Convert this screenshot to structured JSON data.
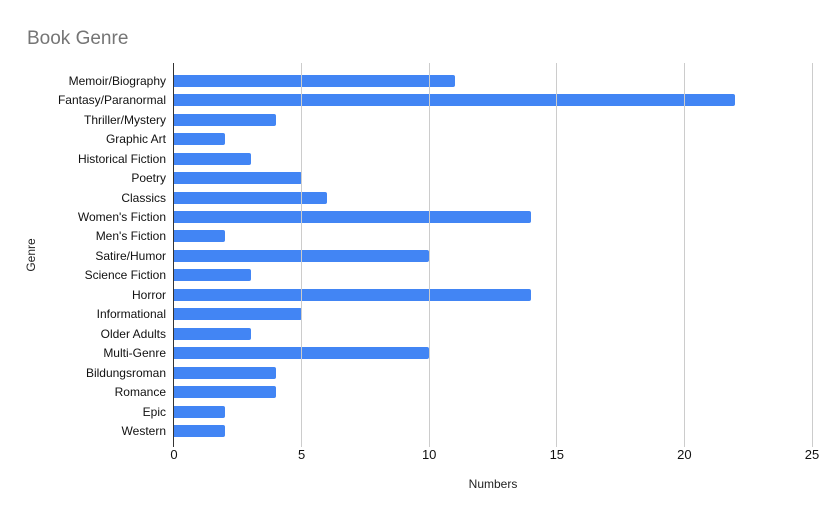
{
  "title": "Book Genre",
  "chart_data": {
    "type": "bar",
    "orientation": "horizontal",
    "title": "Book Genre",
    "categories": [
      "Memoir/Biography",
      "Fantasy/Paranormal",
      "Thriller/Mystery",
      "Graphic Art",
      "Historical Fiction",
      "Poetry",
      "Classics",
      "Women's Fiction",
      "Men's Fiction",
      "Satire/Humor",
      "Science Fiction",
      "Horror",
      "Informational",
      "Older Adults",
      "Multi-Genre",
      "Bildungsroman",
      "Romance",
      "Epic",
      "Western"
    ],
    "values": [
      11,
      22,
      4,
      2,
      3,
      5,
      6,
      14,
      2,
      10,
      3,
      14,
      5,
      3,
      10,
      4,
      4,
      2,
      2
    ],
    "xlabel": "Numbers",
    "ylabel": "Genre",
    "xlim": [
      0,
      25
    ],
    "xticks": [
      0,
      5,
      10,
      15,
      20,
      25
    ],
    "grid": "vertical-only",
    "legend_position": "none",
    "bar_color": "#4285f4",
    "title_color": "#757575",
    "gridline_color": "#cccccc",
    "axis_line_color": "#333333",
    "tick_label_color": "#111111"
  }
}
